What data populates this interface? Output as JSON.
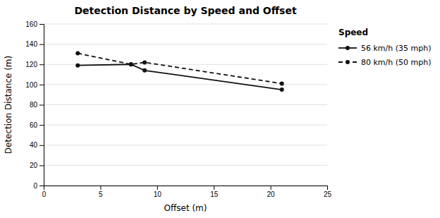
{
  "chart_data": {
    "type": "line",
    "title": "Detection Distance by Speed and Offset",
    "x_label": "Offset (m)",
    "y_label": "Detection Distance (m)",
    "xlim": [
      0,
      25
    ],
    "ylim": [
      0,
      160
    ],
    "xticks": [
      0,
      5,
      10,
      15,
      20,
      25
    ],
    "yticks": [
      0,
      20,
      40,
      60,
      80,
      100,
      120,
      140,
      160
    ],
    "x": [
      3,
      7.7,
      8.9,
      21
    ],
    "series": [
      {
        "name": "56 km/h (35 mph)",
        "color": "#111111",
        "values": [
          119,
          120,
          114,
          95
        ],
        "marker": "circle",
        "line_style": "solid"
      },
      {
        "name": "80 km/h (50 mph)",
        "color": "#111111",
        "values": [
          131,
          120,
          122,
          101
        ],
        "marker": "circle",
        "line_style": "dashed"
      }
    ],
    "legend_title": "Speed",
    "legend": "right",
    "grid": true
  }
}
